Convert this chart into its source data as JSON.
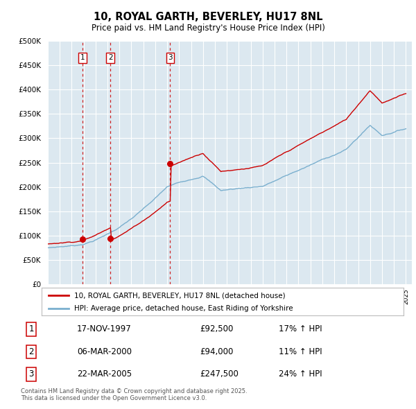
{
  "title": "10, ROYAL GARTH, BEVERLEY, HU17 8NL",
  "subtitle": "Price paid vs. HM Land Registry's House Price Index (HPI)",
  "bg_color": "#ffffff",
  "plot_bg_color": "#dce8f0",
  "grid_color": "#ffffff",
  "sale_dates_numeric": [
    1997.917,
    2000.25,
    2005.25
  ],
  "sale_prices": [
    92500,
    94000,
    247500
  ],
  "sale_labels": [
    "1",
    "2",
    "3"
  ],
  "hpi_color": "#7aafce",
  "sale_color": "#cc0000",
  "dashed_vline_color": "#cc0000",
  "legend_sale_label": "10, ROYAL GARTH, BEVERLEY, HU17 8NL (detached house)",
  "legend_hpi_label": "HPI: Average price, detached house, East Riding of Yorkshire",
  "table_rows": [
    [
      "1",
      "17-NOV-1997",
      "£92,500",
      "17% ↑ HPI"
    ],
    [
      "2",
      "06-MAR-2000",
      "£94,000",
      "11% ↑ HPI"
    ],
    [
      "3",
      "22-MAR-2005",
      "£247,500",
      "24% ↑ HPI"
    ]
  ],
  "footnote": "Contains HM Land Registry data © Crown copyright and database right 2025.\nThis data is licensed under the Open Government Licence v3.0.",
  "ylim": [
    0,
    500000
  ],
  "yticks": [
    0,
    50000,
    100000,
    150000,
    200000,
    250000,
    300000,
    350000,
    400000,
    450000,
    500000
  ],
  "xlim_start": 1995.0,
  "xlim_end": 2025.5
}
